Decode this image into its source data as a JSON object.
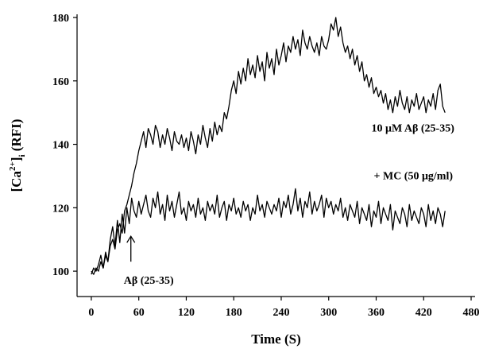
{
  "chart_data": {
    "type": "line",
    "title": "",
    "xlabel": "Time (S)",
    "ylabel_parts": {
      "base": "[Ca",
      "sup": "2+",
      "close": "]",
      "sub": "i",
      "rest": " (RFI)"
    },
    "xlim": [
      -18,
      485
    ],
    "ylim": [
      92,
      181
    ],
    "x_ticks": [
      0,
      60,
      120,
      180,
      240,
      300,
      360,
      420,
      480
    ],
    "y_ticks": [
      100,
      120,
      140,
      160,
      180
    ],
    "grid": false,
    "series": [
      {
        "name": "10 μM Aβ (25-35)",
        "x": [
          0,
          3,
          6,
          9,
          12,
          15,
          18,
          21,
          24,
          27,
          30,
          33,
          36,
          39,
          42,
          45,
          48,
          51,
          54,
          57,
          60,
          63,
          66,
          69,
          72,
          75,
          78,
          81,
          84,
          87,
          90,
          93,
          96,
          99,
          102,
          105,
          108,
          111,
          114,
          117,
          120,
          123,
          126,
          129,
          132,
          135,
          138,
          141,
          144,
          147,
          150,
          153,
          156,
          159,
          162,
          165,
          168,
          171,
          174,
          177,
          180,
          183,
          186,
          189,
          192,
          195,
          198,
          201,
          204,
          207,
          210,
          213,
          216,
          219,
          222,
          225,
          228,
          231,
          234,
          237,
          240,
          243,
          246,
          249,
          252,
          255,
          258,
          261,
          264,
          267,
          270,
          273,
          276,
          279,
          282,
          285,
          288,
          291,
          294,
          297,
          300,
          303,
          306,
          309,
          312,
          315,
          318,
          321,
          324,
          327,
          330,
          333,
          336,
          339,
          342,
          345,
          348,
          351,
          354,
          357,
          360,
          363,
          366,
          369,
          372,
          375,
          378,
          381,
          384,
          387,
          390,
          393,
          396,
          399,
          402,
          405,
          408,
          411,
          414,
          417,
          420,
          423,
          426,
          429,
          432,
          435,
          438,
          441,
          444,
          447
        ],
        "y": [
          100,
          99,
          101,
          100,
          103,
          101,
          105,
          103,
          108,
          110,
          107,
          113,
          115,
          112,
          119,
          121,
          124,
          127,
          131,
          134,
          138,
          141,
          144,
          139,
          145,
          143,
          140,
          146,
          144,
          139,
          143,
          140,
          145,
          142,
          138,
          144,
          141,
          140,
          143,
          139,
          142,
          138,
          144,
          141,
          137,
          143,
          140,
          146,
          142,
          139,
          145,
          141,
          147,
          143,
          146,
          144,
          150,
          148,
          152,
          157,
          160,
          156,
          163,
          159,
          164,
          160,
          167,
          162,
          165,
          161,
          168,
          163,
          166,
          160,
          169,
          164,
          167,
          162,
          170,
          165,
          168,
          172,
          166,
          171,
          169,
          174,
          170,
          173,
          168,
          176,
          172,
          170,
          174,
          171,
          169,
          172,
          168,
          174,
          171,
          170,
          173,
          178,
          176,
          180,
          174,
          177,
          172,
          169,
          171,
          167,
          170,
          165,
          168,
          163,
          166,
          160,
          162,
          158,
          161,
          156,
          158,
          155,
          157,
          153,
          156,
          151,
          154,
          150,
          155,
          152,
          157,
          153,
          151,
          155,
          150,
          154,
          152,
          156,
          151,
          153,
          155,
          150,
          154,
          152,
          156,
          151,
          157,
          159,
          152,
          150
        ]
      },
      {
        "name": "+ MC (50 μg/ml)",
        "x": [
          0,
          3,
          6,
          9,
          12,
          15,
          18,
          21,
          24,
          27,
          30,
          33,
          36,
          39,
          42,
          45,
          48,
          51,
          54,
          57,
          60,
          63,
          66,
          69,
          72,
          75,
          78,
          81,
          84,
          87,
          90,
          93,
          96,
          99,
          102,
          105,
          108,
          111,
          114,
          117,
          120,
          123,
          126,
          129,
          132,
          135,
          138,
          141,
          144,
          147,
          150,
          153,
          156,
          159,
          162,
          165,
          168,
          171,
          174,
          177,
          180,
          183,
          186,
          189,
          192,
          195,
          198,
          201,
          204,
          207,
          210,
          213,
          216,
          219,
          222,
          225,
          228,
          231,
          234,
          237,
          240,
          243,
          246,
          249,
          252,
          255,
          258,
          261,
          264,
          267,
          270,
          273,
          276,
          279,
          282,
          285,
          288,
          291,
          294,
          297,
          300,
          303,
          306,
          309,
          312,
          315,
          318,
          321,
          324,
          327,
          330,
          333,
          336,
          339,
          342,
          345,
          348,
          351,
          354,
          357,
          360,
          363,
          366,
          369,
          372,
          375,
          378,
          381,
          384,
          387,
          390,
          393,
          396,
          399,
          402,
          405,
          408,
          411,
          414,
          417,
          420,
          423,
          426,
          429,
          432,
          435,
          438,
          441,
          444,
          447
        ],
        "y": [
          99,
          101,
          100,
          102,
          105,
          101,
          106,
          103,
          110,
          114,
          108,
          116,
          109,
          118,
          112,
          120,
          115,
          123,
          119,
          117,
          122,
          118,
          121,
          124,
          119,
          117,
          123,
          120,
          125,
          118,
          121,
          116,
          124,
          119,
          122,
          117,
          121,
          125,
          118,
          120,
          116,
          122,
          119,
          121,
          117,
          123,
          118,
          120,
          116,
          122,
          119,
          121,
          118,
          124,
          117,
          120,
          122,
          116,
          121,
          119,
          123,
          118,
          120,
          117,
          122,
          119,
          121,
          116,
          120,
          118,
          124,
          119,
          121,
          117,
          122,
          120,
          118,
          121,
          119,
          123,
          117,
          122,
          120,
          124,
          118,
          121,
          126,
          119,
          123,
          117,
          122,
          120,
          125,
          118,
          122,
          119,
          121,
          124,
          117,
          123,
          120,
          122,
          118,
          121,
          119,
          123,
          117,
          120,
          116,
          121,
          119,
          117,
          122,
          115,
          120,
          118,
          116,
          121,
          114,
          119,
          117,
          122,
          115,
          120,
          118,
          116,
          121,
          113,
          119,
          117,
          115,
          120,
          118,
          114,
          121,
          116,
          119,
          117,
          115,
          120,
          118,
          114,
          121,
          116,
          119,
          115,
          120,
          118,
          114,
          119
        ]
      }
    ],
    "annotations": [
      {
        "text": "10 μM Aβ (25-35)",
        "x": 354,
        "y": 144
      },
      {
        "text": "+ MC (50 μg/ml)",
        "x": 357,
        "y": 129
      },
      {
        "text": "Aβ (25-35)",
        "x": 41,
        "y": 96
      }
    ],
    "arrow": {
      "x": 50,
      "y_from": 103,
      "y_to": 111
    }
  }
}
